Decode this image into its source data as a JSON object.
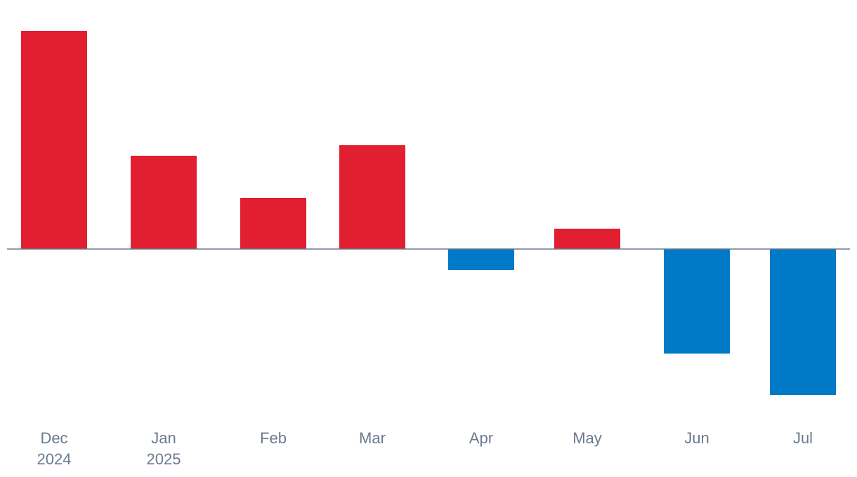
{
  "chart_data": {
    "type": "bar",
    "title": "",
    "xlabel": "",
    "ylabel": "",
    "categories": [
      {
        "line1": "Dec",
        "line2": "2024"
      },
      {
        "line1": "Jan",
        "line2": "2025"
      },
      {
        "line1": "Feb",
        "line2": ""
      },
      {
        "line1": "Mar",
        "line2": ""
      },
      {
        "line1": "Apr",
        "line2": ""
      },
      {
        "line1": "May",
        "line2": ""
      },
      {
        "line1": "Jun",
        "line2": ""
      },
      {
        "line1": "Jul",
        "line2": ""
      }
    ],
    "values": [
      311,
      133,
      73,
      148,
      -30,
      29,
      -149,
      -208
    ],
    "ylim": [
      -225,
      350
    ],
    "grid": false,
    "legend": "none",
    "colors": {
      "positive": "#e11f30",
      "negative": "#0079c6",
      "baseline": "#6b7a8f",
      "label": "#6b7a8f"
    }
  }
}
